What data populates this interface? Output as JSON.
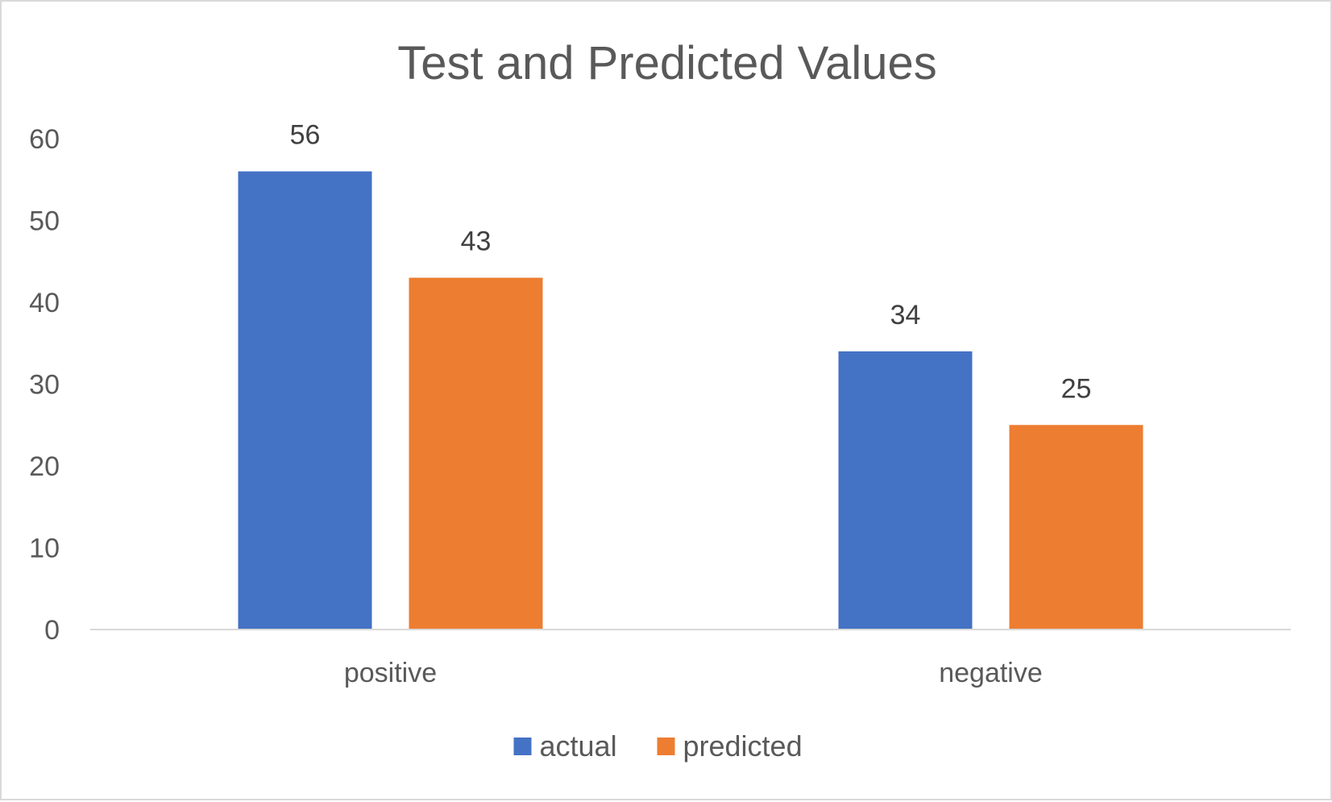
{
  "chart_data": {
    "type": "bar",
    "title": "Test and Predicted Values",
    "xlabel": "",
    "ylabel": "",
    "categories": [
      "positive",
      "negative"
    ],
    "series": [
      {
        "name": "actual",
        "values": [
          56,
          34
        ],
        "color": "#4472c4"
      },
      {
        "name": "predicted",
        "values": [
          43,
          25
        ],
        "color": "#ed7d31"
      }
    ],
    "ylim": [
      0,
      60
    ],
    "yticks": [
      0,
      10,
      20,
      30,
      40,
      50,
      60
    ],
    "grid": false,
    "data_labels": true,
    "legend_position": "bottom"
  }
}
